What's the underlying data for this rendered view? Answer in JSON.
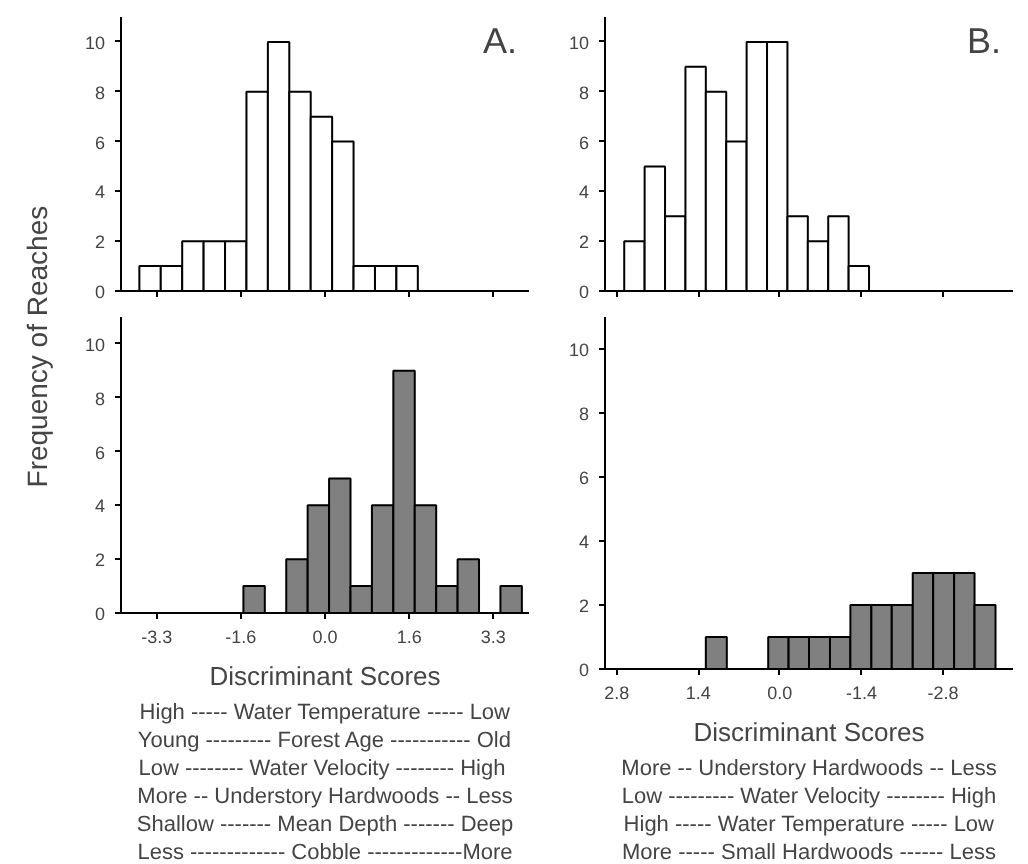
{
  "chart_data": [
    {
      "type": "histogram",
      "title": "A.",
      "ylabel": "Frequency of Reaches",
      "bins": [
        -3.64,
        -3.22,
        -2.8,
        -2.38,
        -1.96,
        -1.54,
        -1.12,
        -0.7,
        -0.28,
        0.14,
        0.56,
        0.98,
        1.4,
        1.82
      ],
      "values": [
        1,
        1,
        2,
        2,
        2,
        8,
        10,
        8,
        7,
        6,
        1,
        1,
        1
      ],
      "color": "#ffffff",
      "xlim": [
        -4.0,
        4.0
      ],
      "xticks": [
        {
          "value": -3.3,
          "label": null
        },
        {
          "value": -1.65,
          "label": null
        },
        {
          "value": 0,
          "label": null
        },
        {
          "value": 1.65,
          "label": null
        },
        {
          "value": 3.3,
          "label": null
        }
      ],
      "ylim": [
        0,
        11
      ],
      "yticks": [
        0,
        2,
        4,
        6,
        8,
        10
      ],
      "tick_labels": "y"
    },
    {
      "type": "histogram",
      "xlabel": "Discriminant Scores",
      "bins": [
        -1.6,
        -1.18,
        -0.76,
        -0.34,
        0.08,
        0.5,
        0.92,
        1.34,
        1.76,
        2.18,
        2.6,
        3.02,
        3.44,
        3.86
      ],
      "values": [
        1,
        0,
        2,
        4,
        5,
        1,
        4,
        9,
        4,
        1,
        2,
        0,
        1
      ],
      "color": "#808080",
      "xlim": [
        -4.0,
        4.0
      ],
      "xticks": [
        {
          "value": -3.3,
          "label": "-3.3"
        },
        {
          "value": -1.65,
          "label": "-1.6"
        },
        {
          "value": 0,
          "label": "0.0"
        },
        {
          "value": 1.65,
          "label": "1.6"
        },
        {
          "value": 3.3,
          "label": "3.3"
        }
      ],
      "ylim": [
        0,
        11
      ],
      "yticks": [
        0,
        2,
        4,
        6,
        8,
        10
      ],
      "annotations": [
        "High ----- Water Temperature ----- Low",
        "Young --------- Forest Age ----------- Old",
        "Low -------- Water  Velocity -------- High",
        "More -- Understory Hardwoods -- Less",
        "Shallow ------- Mean Depth ------- Deep",
        "Less ------------- Cobble -------------More"
      ]
    },
    {
      "type": "histogram",
      "title": "B.",
      "bins": [
        2.67,
        2.32,
        1.97,
        1.62,
        1.27,
        0.92,
        0.57,
        0.22,
        -0.13,
        -0.48,
        -0.83,
        -1.18,
        -1.53
      ],
      "values": [
        2,
        5,
        3,
        9,
        8,
        6,
        10,
        10,
        3,
        2,
        3,
        1
      ],
      "color": "#ffffff",
      "xlim": [
        3.0,
        -4.0
      ],
      "xticks": [
        {
          "value": 2.8,
          "label": null
        },
        {
          "value": 1.4,
          "label": null
        },
        {
          "value": 0,
          "label": null
        },
        {
          "value": -1.4,
          "label": null
        },
        {
          "value": -2.8,
          "label": null
        }
      ],
      "ylim": [
        0,
        11
      ],
      "yticks": [
        0,
        2,
        4,
        6,
        8,
        10
      ],
      "tick_labels": "y"
    },
    {
      "type": "histogram",
      "xlabel": "Discriminant Scores",
      "bins": [
        1.27,
        0.91,
        0.2,
        -0.15,
        -0.5,
        -0.86,
        -1.21,
        -1.57,
        -1.92,
        -2.28,
        -2.63,
        -2.99,
        -3.34,
        -3.7
      ],
      "values": [
        1,
        0,
        1,
        1,
        1,
        1,
        2,
        2,
        2,
        3,
        3,
        3,
        2
      ],
      "color": "#808080",
      "xlim": [
        3.0,
        -4.0
      ],
      "xticks": [
        {
          "value": 2.8,
          "label": "2.8"
        },
        {
          "value": 1.4,
          "label": "1.4"
        },
        {
          "value": 0,
          "label": "0.0"
        },
        {
          "value": -1.4,
          "label": "-1.4"
        },
        {
          "value": -2.8,
          "label": "-2.8"
        }
      ],
      "ylim": [
        0,
        11
      ],
      "yticks": [
        0,
        2,
        4,
        6,
        8,
        10
      ],
      "annotations": [
        "More -- Understory Hardwoods -- Less",
        "Low --------- Water Velocity -------- High",
        "High ----- Water Temperature ----- Low",
        "More ----- Small Hardwoods ------ Less"
      ]
    }
  ]
}
